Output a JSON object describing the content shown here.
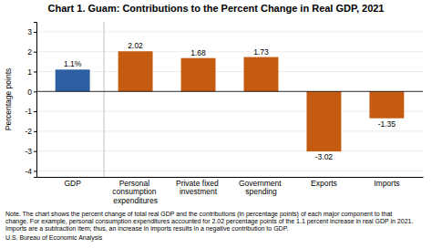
{
  "chart_data": {
    "type": "bar",
    "title": "Chart 1. Guam: Contributions to the Percent Change in Real GDP, 2021",
    "ylabel": "Percentage points",
    "categories": [
      "GDP",
      "Personal\nconsumption\nexpenditures",
      "Private fixed\ninvestment",
      "Government\nspending",
      "Exports",
      "Imports"
    ],
    "values": [
      1.1,
      2.02,
      1.68,
      1.73,
      -3.02,
      -1.35
    ],
    "value_labels": [
      "1.1%",
      "2.02",
      "1.68",
      "1.73",
      "-3.02",
      "-1.35"
    ],
    "data_labels": true,
    "colors": [
      "#2e5fa3",
      "#c55a11",
      "#c55a11",
      "#c55a11",
      "#c55a11",
      "#c55a11"
    ],
    "ylim": [
      -4.3,
      3.5
    ],
    "yticks": [
      -4,
      -3,
      -2,
      -1,
      0,
      1,
      2,
      3
    ],
    "grid": true,
    "notes": [
      "Note. The chart shows the percent change of total real GDP and the contributions (in percentage points) of each major component to that",
      "change. For example, personal consumption expenditures accounted for 2.02 percentage points of the 1.1 percent increase in real GDP in 2021.",
      "Imports are a subtraction item; thus, an increase in imports results in a negative contribution to GDP."
    ],
    "source": "U.S. Bureau of Economic Analysis"
  }
}
